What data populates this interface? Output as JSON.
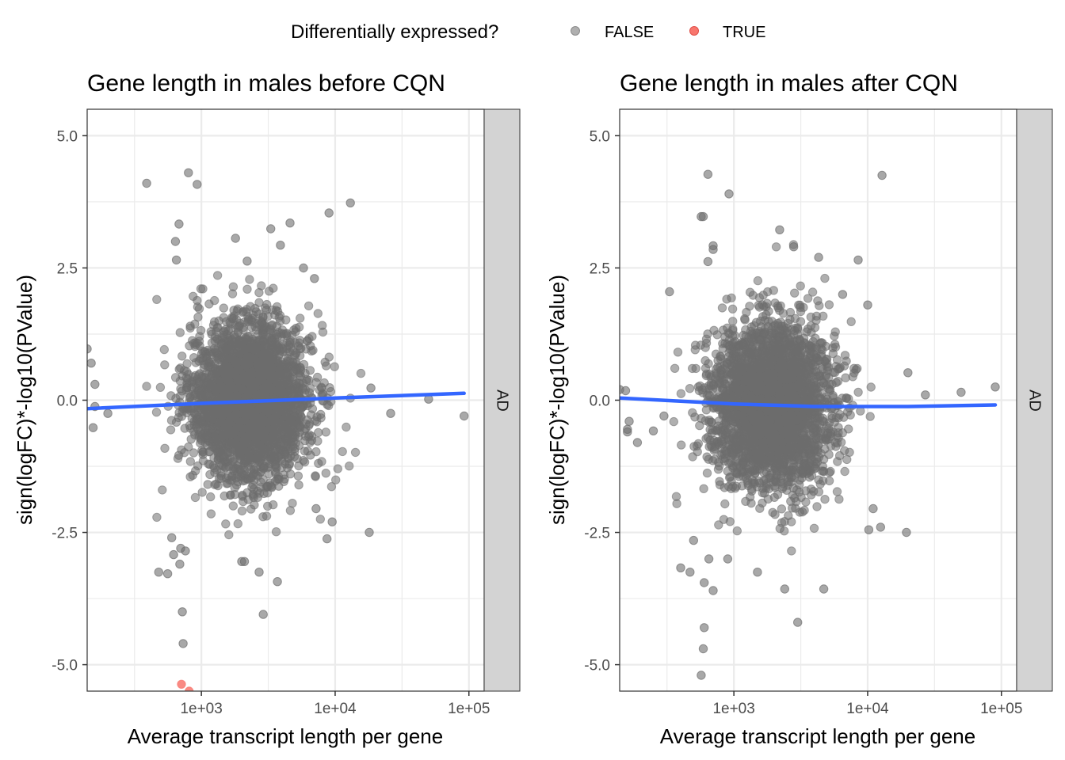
{
  "legend": {
    "title": "Differentially expressed?",
    "placement": "top",
    "entries": [
      {
        "label": "FALSE",
        "color": "#7a7a7a"
      },
      {
        "label": "TRUE",
        "color": "#f8766d"
      }
    ]
  },
  "colors": {
    "point_false": "#6e6e6e",
    "point_true": "#f8766d",
    "smooth_line": "#3366ff",
    "strip_fill": "#d3d3d3",
    "grid": "#ebebeb",
    "panel_border": "#333333"
  },
  "chart_data": [
    {
      "type": "scatter",
      "title": "Gene length in males before CQN",
      "xlabel": "Average transcript length per gene",
      "ylabel": "sign(logFC)*-log10(PValue)",
      "x_scale": "log10",
      "xlim": [
        140,
        130000
      ],
      "ylim": [
        -5.5,
        5.5
      ],
      "x_ticks": [
        1000,
        10000,
        100000
      ],
      "x_tick_labels": [
        "1e+03",
        "1e+04",
        "1e+05"
      ],
      "y_ticks": [
        -5.0,
        -2.5,
        0.0,
        2.5,
        5.0
      ],
      "y_tick_labels": [
        "-5.0",
        "-2.5",
        "0.0",
        "2.5",
        "5.0"
      ],
      "grid": true,
      "facet_label": "AD",
      "cloud": {
        "center_log10x": 3.36,
        "center_y": 0.0,
        "sd_log10x": 0.22,
        "sd_y": 0.72,
        "count": 3200
      },
      "series": [
        {
          "name": "FALSE",
          "points": [
            [
              140,
              0.97
            ],
            [
              150,
              0.7
            ],
            [
              160,
              0.3
            ],
            [
              160,
              -0.12
            ],
            [
              155,
              -0.52
            ],
            [
              200,
              -0.25
            ],
            [
              390,
              4.1
            ],
            [
              800,
              4.3
            ],
            [
              930,
              4.08
            ],
            [
              680,
              3.33
            ],
            [
              640,
              3.0
            ],
            [
              650,
              2.65
            ],
            [
              1800,
              3.06
            ],
            [
              3300,
              3.24
            ],
            [
              4600,
              3.35
            ],
            [
              9000,
              3.54
            ],
            [
              13000,
              3.73
            ],
            [
              3900,
              2.93
            ],
            [
              2200,
              2.63
            ],
            [
              5800,
              2.5
            ],
            [
              7000,
              2.3
            ],
            [
              18500,
              0.23
            ],
            [
              26000,
              -0.25
            ],
            [
              50000,
              0.02
            ],
            [
              92000,
              -0.3
            ],
            [
              18000,
              -2.5
            ],
            [
              9500,
              -2.3
            ],
            [
              7200,
              -2.05
            ],
            [
              8700,
              -2.62
            ],
            [
              3700,
              -3.43
            ],
            [
              2900,
              -4.05
            ],
            [
              2100,
              -3.05
            ],
            [
              2000,
              -3.05
            ],
            [
              2700,
              -3.25
            ],
            [
              480,
              -3.25
            ],
            [
              560,
              -3.28
            ],
            [
              620,
              -2.92
            ],
            [
              700,
              -2.8
            ],
            [
              760,
              -2.85
            ],
            [
              720,
              -4.0
            ],
            [
              730,
              -4.6
            ],
            [
              690,
              -3.1
            ],
            [
              600,
              -2.6
            ]
          ]
        },
        {
          "name": "TRUE",
          "points": [
            [
              710,
              -5.37
            ],
            [
              810,
              -5.5
            ]
          ]
        }
      ],
      "smooth": {
        "x": [
          140,
          1000,
          10000,
          92000
        ],
        "y": [
          -0.16,
          -0.06,
          0.04,
          0.13
        ]
      }
    },
    {
      "type": "scatter",
      "title": "Gene length in males after CQN",
      "xlabel": "Average transcript length per gene",
      "ylabel": "sign(logFC)*-log10(PValue)",
      "x_scale": "log10",
      "xlim": [
        140,
        130000
      ],
      "ylim": [
        -5.5,
        5.5
      ],
      "x_ticks": [
        1000,
        10000,
        100000
      ],
      "x_tick_labels": [
        "1e+03",
        "1e+04",
        "1e+05"
      ],
      "y_ticks": [
        -5.0,
        -2.5,
        0.0,
        2.5,
        5.0
      ],
      "y_tick_labels": [
        "-5.0",
        "-2.5",
        "0.0",
        "2.5",
        "5.0"
      ],
      "grid": true,
      "facet_label": "AD",
      "cloud": {
        "center_log10x": 3.28,
        "center_y": -0.1,
        "sd_log10x": 0.22,
        "sd_y": 0.75,
        "count": 3200
      },
      "series": [
        {
          "name": "FALSE",
          "points": [
            [
              140,
              0.2
            ],
            [
              155,
              0.18
            ],
            [
              165,
              -0.4
            ],
            [
              160,
              -0.55
            ],
            [
              160,
              -0.6
            ],
            [
              190,
              -0.8
            ],
            [
              250,
              -0.58
            ],
            [
              300,
              -0.3
            ],
            [
              330,
              2.05
            ],
            [
              640,
              4.27
            ],
            [
              920,
              3.9
            ],
            [
              12800,
              4.25
            ],
            [
              2200,
              3.22
            ],
            [
              2800,
              2.9
            ],
            [
              570,
              3.47
            ],
            [
              590,
              3.47
            ],
            [
              700,
              2.92
            ],
            [
              700,
              2.85
            ],
            [
              640,
              2.62
            ],
            [
              4300,
              2.7
            ],
            [
              8500,
              2.65
            ],
            [
              6500,
              2.0
            ],
            [
              10000,
              1.8
            ],
            [
              20000,
              0.52
            ],
            [
              27000,
              0.1
            ],
            [
              50000,
              0.15
            ],
            [
              90000,
              0.25
            ],
            [
              19500,
              -2.5
            ],
            [
              12500,
              -2.4
            ],
            [
              11000,
              -2.05
            ],
            [
              10200,
              -2.45
            ],
            [
              4700,
              -3.57
            ],
            [
              3000,
              -4.2
            ],
            [
              2400,
              -3.57
            ],
            [
              1500,
              -3.25
            ],
            [
              400,
              -3.17
            ],
            [
              470,
              -3.25
            ],
            [
              600,
              -3.45
            ],
            [
              700,
              -3.6
            ],
            [
              900,
              -3.0
            ],
            [
              600,
              -4.3
            ],
            [
              590,
              -4.7
            ],
            [
              570,
              -5.2
            ],
            [
              500,
              -2.65
            ],
            [
              650,
              -3.0
            ]
          ]
        }
      ],
      "smooth": {
        "x": [
          140,
          1000,
          4000,
          20000,
          90000
        ],
        "y": [
          0.04,
          -0.07,
          -0.12,
          -0.12,
          -0.09
        ]
      }
    }
  ]
}
